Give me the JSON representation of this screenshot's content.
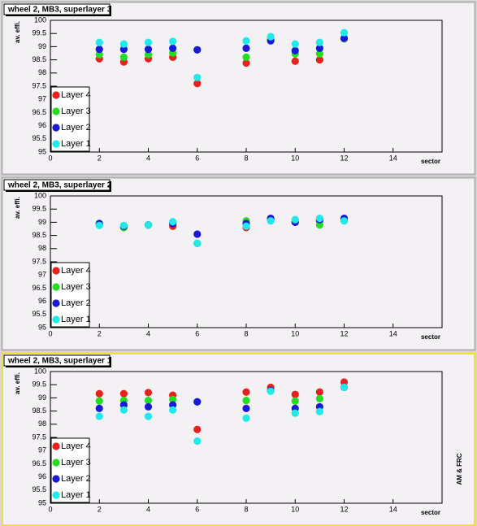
{
  "chart_data": [
    {
      "type": "scatter",
      "title": "wheel 2, MB3, superlayer 3",
      "xlabel": "sector",
      "ylabel": "av. effi.",
      "x": [
        2,
        3,
        4,
        5,
        6,
        8,
        9,
        10,
        11,
        12
      ],
      "series": [
        {
          "name": "Layer 4",
          "color": "#e8201e",
          "values": [
            98.54,
            98.42,
            98.54,
            98.6,
            97.6,
            98.38,
            99.25,
            98.45,
            98.5,
            99.3
          ]
        },
        {
          "name": "Layer 3",
          "color": "#22dd22",
          "values": [
            98.7,
            98.6,
            98.7,
            98.76,
            98.88,
            98.6,
            99.3,
            98.73,
            98.73,
            99.3
          ]
        },
        {
          "name": "Layer 2",
          "color": "#1a1ad6",
          "values": [
            98.9,
            98.9,
            98.9,
            98.94,
            98.88,
            98.94,
            99.22,
            98.85,
            98.94,
            99.32
          ]
        },
        {
          "name": "Layer 1",
          "color": "#22e8e8",
          "values": [
            99.16,
            99.1,
            99.16,
            99.2,
            97.83,
            99.22,
            99.38,
            99.1,
            99.16,
            99.53
          ]
        }
      ],
      "xlim": [
        0,
        16
      ],
      "ylim": [
        95,
        100
      ],
      "xticks": [
        0,
        2,
        4,
        6,
        8,
        10,
        12,
        14
      ],
      "yticks": [
        95,
        95.5,
        96,
        96.5,
        97,
        97.5,
        98,
        98.5,
        99,
        99.5,
        100
      ]
    },
    {
      "type": "scatter",
      "title": "wheel 2, MB3, superlayer 2",
      "xlabel": "sector",
      "ylabel": "av. effi.",
      "x": [
        2,
        3,
        4,
        5,
        6,
        8,
        9,
        10,
        11,
        12
      ],
      "series": [
        {
          "name": "Layer 4",
          "color": "#e8201e",
          "values": [
            98.95,
            98.8,
            98.9,
            98.85,
            98.2,
            98.8,
            99.1,
            99.0,
            99.05,
            99.1
          ]
        },
        {
          "name": "Layer 3",
          "color": "#22dd22",
          "values": [
            98.95,
            98.8,
            98.9,
            99.0,
            98.2,
            99.05,
            99.1,
            99.05,
            98.9,
            99.1
          ]
        },
        {
          "name": "Layer 2",
          "color": "#1a1ad6",
          "values": [
            98.95,
            98.85,
            98.9,
            98.95,
            98.55,
            98.95,
            99.15,
            99.0,
            99.1,
            99.15
          ]
        },
        {
          "name": "Layer 1",
          "color": "#22e8e8",
          "values": [
            98.88,
            98.88,
            98.9,
            99.02,
            98.2,
            98.85,
            99.05,
            99.1,
            99.15,
            99.05
          ]
        }
      ],
      "xlim": [
        0,
        16
      ],
      "ylim": [
        95,
        100
      ],
      "xticks": [
        0,
        2,
        4,
        6,
        8,
        10,
        12,
        14
      ],
      "yticks": [
        95,
        95.5,
        96,
        96.5,
        97,
        97.5,
        98,
        98.5,
        99,
        99.5,
        100
      ]
    },
    {
      "type": "scatter",
      "title": "wheel 2, MB3, superlayer 1",
      "xlabel": "sector",
      "ylabel": "av. effi.",
      "annotation": "AM & FRC",
      "x": [
        2,
        3,
        4,
        5,
        6,
        8,
        9,
        10,
        11,
        12
      ],
      "series": [
        {
          "name": "Layer 4",
          "color": "#e8201e",
          "values": [
            99.16,
            99.16,
            99.2,
            99.1,
            97.8,
            99.22,
            99.4,
            99.13,
            99.22,
            99.6
          ]
        },
        {
          "name": "Layer 3",
          "color": "#22dd22",
          "values": [
            98.88,
            98.9,
            98.9,
            98.94,
            98.85,
            98.9,
            99.28,
            98.88,
            98.97,
            99.4
          ]
        },
        {
          "name": "Layer 2",
          "color": "#1a1ad6",
          "values": [
            98.6,
            98.73,
            98.66,
            98.73,
            98.85,
            98.6,
            99.28,
            98.6,
            98.66,
            99.4
          ]
        },
        {
          "name": "Layer 1",
          "color": "#22e8e8",
          "values": [
            98.3,
            98.54,
            98.3,
            98.54,
            97.36,
            98.23,
            99.25,
            98.42,
            98.48,
            99.4
          ]
        }
      ],
      "xlim": [
        0,
        16
      ],
      "ylim": [
        95,
        100
      ],
      "xticks": [
        0,
        2,
        4,
        6,
        8,
        10,
        12,
        14
      ],
      "yticks": [
        95,
        95.5,
        96,
        96.5,
        97,
        97.5,
        98,
        98.5,
        99,
        99.5,
        100
      ]
    }
  ]
}
